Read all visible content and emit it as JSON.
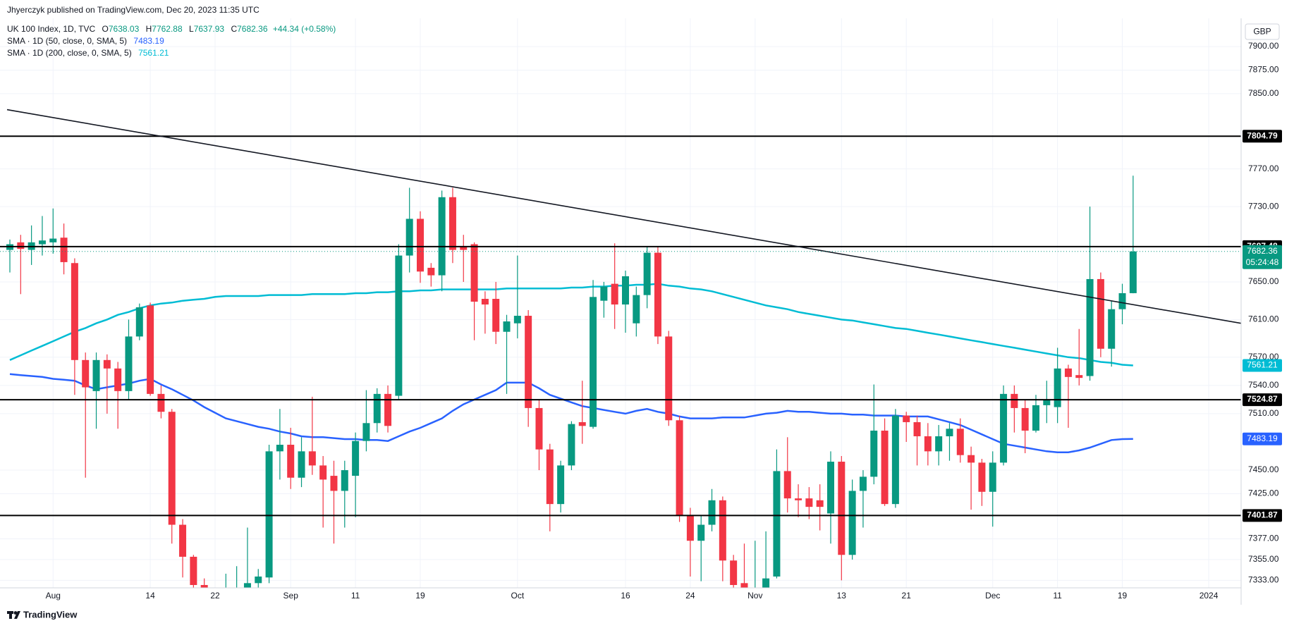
{
  "header": {
    "published": "Jhyerczyk published on TradingView.com, Dec 20, 2023 11:35 UTC"
  },
  "chart_data": {
    "type": "candlestick",
    "title": "UK 100 Index, 1D, TVC",
    "ohlc_keys": [
      "O",
      "H",
      "L",
      "C"
    ],
    "change": "+44.34 (+0.58%)",
    "currency": "GBP",
    "up_color": "#089981",
    "down_color": "#f23645",
    "categories": [
      null,
      null,
      null,
      null,
      "Aug",
      null,
      null,
      null,
      null,
      null,
      null,
      null,
      null,
      "14",
      null,
      null,
      null,
      null,
      null,
      "22",
      null,
      null,
      null,
      null,
      null,
      null,
      "Sep",
      null,
      null,
      null,
      null,
      null,
      "11",
      null,
      null,
      null,
      null,
      null,
      "19",
      null,
      null,
      null,
      null,
      null,
      null,
      null,
      null,
      "Oct",
      null,
      null,
      null,
      null,
      null,
      null,
      null,
      null,
      null,
      "16",
      null,
      null,
      null,
      null,
      null,
      "24",
      null,
      null,
      null,
      null,
      null,
      "Nov",
      null,
      null,
      null,
      null,
      null,
      null,
      null,
      "13",
      null,
      null,
      null,
      null,
      null,
      "21",
      null,
      null,
      null,
      null,
      null,
      null,
      null,
      "Dec",
      null,
      null,
      null,
      null,
      null,
      "11",
      null,
      null,
      null,
      null,
      null,
      "19",
      null,
      null,
      null,
      null,
      null,
      null,
      null,
      "2024",
      null,
      null,
      null
    ],
    "open": [
      7684,
      7692,
      7684,
      7690,
      7692,
      7697,
      7670,
      7567,
      7534,
      7567,
      7558,
      7534,
      7592,
      7625,
      7531,
      7512,
      7392,
      7358,
      7328,
      7300,
      7290,
      7310,
      7320,
      7330,
      7336,
      7470,
      7477,
      7442,
      7470,
      7455,
      7444,
      7428,
      7444,
      7481,
      7500,
      7531,
      7529,
      7678,
      7717,
      7665,
      7657,
      7740,
      7688,
      7690,
      7632,
      7632,
      7597,
      7606,
      7614,
      7516,
      7472,
      7414,
      7455,
      7501,
      7496,
      7630,
      7648,
      7626,
      7606,
      7636,
      7681,
      7592,
      7503,
      7402,
      7375,
      7392,
      7418,
      7354,
      7330,
      7320,
      7325,
      7337,
      7449,
      7420,
      7420,
      7418,
      7404,
      7459,
      7360,
      7428,
      7443,
      7492,
      7414,
      7508,
      7501,
      7486,
      7470,
      7486,
      7494,
      7466,
      7458,
      7427,
      7458,
      7531,
      7516,
      7492,
      7519,
      7517,
      7558,
      7551,
      7550,
      7653,
      7579,
      7621,
      7638.03,
      null,
      null,
      null,
      null,
      null,
      null,
      null,
      null,
      null,
      null
    ],
    "high": [
      7695,
      7700,
      7710,
      7720,
      7728,
      7712,
      7675,
      7575,
      7575,
      7573,
      7565,
      7610,
      7627,
      7628,
      7540,
      7515,
      7398,
      7360,
      7335,
      7320,
      7340,
      7348,
      7389,
      7345,
      7477,
      7515,
      7495,
      7485,
      7528,
      7465,
      7460,
      7460,
      7490,
      7535,
      7537,
      7540,
      7690,
      7750,
      7725,
      7670,
      7747,
      7750,
      7700,
      7692,
      7640,
      7650,
      7615,
      7678,
      7620,
      7525,
      7478,
      7460,
      7502,
      7545,
      7652,
      7650,
      7691,
      7662,
      7645,
      7688,
      7687,
      7598,
      7508,
      7410,
      7402,
      7430,
      7422,
      7360,
      7372,
      7375,
      7385,
      7472,
      7485,
      7435,
      7432,
      7435,
      7470,
      7465,
      7440,
      7450,
      7541,
      7505,
      7515,
      7512,
      7508,
      7500,
      7498,
      7500,
      7505,
      7475,
      7462,
      7470,
      7540,
      7540,
      7525,
      7530,
      7545,
      7580,
      7562,
      7600,
      7730,
      7660,
      7630,
      7648,
      7762.88,
      null,
      null,
      null,
      null,
      null,
      null,
      null,
      null,
      null,
      null
    ],
    "low": [
      7660,
      7637,
      7668,
      7678,
      7680,
      7658,
      7530,
      7442,
      7494,
      7510,
      7494,
      7525,
      7588,
      7529,
      7505,
      7372,
      7336,
      7320,
      7280,
      7260,
      7270,
      7290,
      7300,
      7315,
      7330,
      7440,
      7430,
      7432,
      7445,
      7389,
      7372,
      7389,
      7400,
      7470,
      7490,
      7490,
      7525,
      7660,
      7649,
      7645,
      7640,
      7670,
      7650,
      7588,
      7595,
      7584,
      7531,
      7590,
      7496,
      7450,
      7385,
      7405,
      7450,
      7478,
      7494,
      7612,
      7600,
      7596,
      7592,
      7622,
      7584,
      7497,
      7395,
      7337,
      7332,
      7385,
      7332,
      7310,
      7310,
      7300,
      7310,
      7335,
      7405,
      7400,
      7398,
      7386,
      7372,
      7333,
      7355,
      7389,
      7435,
      7412,
      7410,
      7480,
      7455,
      7455,
      7455,
      7460,
      7458,
      7408,
      7412,
      7390,
      7455,
      7490,
      7468,
      7490,
      7500,
      7500,
      7495,
      7540,
      7545,
      7570,
      7560,
      7605,
      7637.93,
      null,
      null,
      null,
      null,
      null,
      null,
      null,
      null,
      null,
      null
    ],
    "close": [
      7690,
      7685,
      7692,
      7694,
      7696,
      7671,
      7567,
      7538,
      7567,
      7558,
      7534,
      7592,
      7623,
      7531,
      7512,
      7392,
      7358,
      7328,
      7300,
      7290,
      7310,
      7320,
      7330,
      7337,
      7470,
      7477,
      7442,
      7470,
      7455,
      7440,
      7428,
      7450,
      7481,
      7500,
      7531,
      7497,
      7678,
      7717,
      7661,
      7657,
      7740,
      7684,
      7684,
      7629,
      7626,
      7597,
      7608,
      7614,
      7516,
      7472,
      7414,
      7455,
      7499,
      7497,
      7634,
      7645,
      7626,
      7656,
      7636,
      7681,
      7592,
      7503,
      7402,
      7375,
      7392,
      7418,
      7354,
      7328,
      7320,
      7325,
      7335,
      7449,
      7420,
      7418,
      7411,
      7411,
      7459,
      7360,
      7428,
      7443,
      7492,
      7414,
      7508,
      7501,
      7486,
      7470,
      7486,
      7494,
      7466,
      7458,
      7427,
      7458,
      7531,
      7516,
      7492,
      7519,
      7525,
      7558,
      7549,
      7548,
      7653,
      7579,
      7621,
      7638.02,
      7682.36,
      null,
      null,
      null,
      null,
      null,
      null,
      null,
      null,
      null,
      null
    ],
    "series": [
      {
        "name": "SMA · 1D (50, close, 0, SMA, 5)",
        "color": "#2962ff",
        "values": [
          7552,
          7551,
          7550,
          7549,
          7547,
          7546,
          7545,
          7540,
          7536,
          7538,
          7540,
          7542,
          7545,
          7547,
          7541,
          7536,
          7530,
          7524,
          7517,
          7511,
          7505,
          7502,
          7499,
          7496,
          7494,
          7491,
          7489,
          7486,
          7485,
          7485,
          7484,
          7483,
          7483,
          7482,
          7482,
          7481,
          7486,
          7491,
          7495,
          7500,
          7505,
          7513,
          7520,
          7525,
          7530,
          7535,
          7543,
          7543,
          7543,
          7537,
          7530,
          7526,
          7522,
          7518,
          7516,
          7514,
          7512,
          7510,
          7513,
          7515,
          7512,
          7510,
          7507,
          7505,
          7505,
          7505,
          7506,
          7506,
          7506,
          7508,
          7510,
          7511,
          7513,
          7512,
          7512,
          7511,
          7510,
          7510,
          7509,
          7509,
          7508,
          7508,
          7508,
          7507,
          7507,
          7507,
          7504,
          7501,
          7498,
          7493,
          7488,
          7483,
          7478,
          7476,
          7474,
          7472,
          7470,
          7469,
          7469,
          7471,
          7474,
          7478,
          7482,
          7483,
          7483.19,
          null,
          null,
          null,
          null,
          null,
          null,
          null,
          null,
          null,
          null
        ]
      },
      {
        "name": "SMA · 1D (200, close, 0, SMA, 5)",
        "color": "#00bcd4",
        "values": [
          7567,
          7572,
          7577,
          7582,
          7587,
          7592,
          7597,
          7601,
          7606,
          7610,
          7615,
          7618,
          7622,
          7625,
          7627,
          7628,
          7630,
          7631,
          7632,
          7634,
          7635,
          7635,
          7635,
          7635,
          7636,
          7636,
          7636,
          7636,
          7637,
          7637,
          7637,
          7637,
          7638,
          7638,
          7639,
          7639,
          7640,
          7640,
          7641,
          7641,
          7642,
          7642,
          7642,
          7642,
          7642,
          7642,
          7643,
          7643,
          7643,
          7643,
          7643,
          7643,
          7644,
          7644,
          7645,
          7645,
          7646,
          7646,
          7647,
          7647,
          7648,
          7646,
          7645,
          7643,
          7642,
          7640,
          7637,
          7634,
          7631,
          7628,
          7625,
          7623,
          7621,
          7618,
          7616,
          7614,
          7612,
          7610,
          7609,
          7607,
          7605,
          7603,
          7601,
          7600,
          7598,
          7596,
          7594,
          7592,
          7590,
          7588,
          7586,
          7584,
          7582,
          7580,
          7578,
          7576,
          7574,
          7572,
          7570,
          7569,
          7567,
          7565,
          7564,
          7562,
          7561.21,
          null,
          null,
          null,
          null,
          null,
          null,
          null,
          null,
          null,
          null
        ]
      }
    ],
    "ylim": [
      7325,
      7930
    ],
    "yticks": [
      {
        "value": 7333,
        "label": "7333.00"
      },
      {
        "value": 7355,
        "label": "7355.00"
      },
      {
        "value": 7377,
        "label": "7377.00"
      },
      {
        "value": 7425,
        "label": "7425.00"
      },
      {
        "value": 7450,
        "label": "7450.00"
      },
      {
        "value": 7510,
        "label": "7510.00"
      },
      {
        "value": 7540,
        "label": "7540.00"
      },
      {
        "value": 7570,
        "label": "7570.00"
      },
      {
        "value": 7610,
        "label": "7610.00"
      },
      {
        "value": 7650,
        "label": "7650.00"
      },
      {
        "value": 7730,
        "label": "7730.00"
      },
      {
        "value": 7770,
        "label": "7770.00"
      },
      {
        "value": 7850,
        "label": "7850.00"
      },
      {
        "value": 7875,
        "label": "7875.00"
      },
      {
        "value": 7900,
        "label": "7900.00"
      }
    ],
    "grid": true,
    "levels": [
      7804.79,
      7687.48,
      7524.87,
      7401.87
    ],
    "level_color": "#000000",
    "trendline": [
      7833,
      7606
    ],
    "countdown": "05:24:48"
  },
  "footer": {
    "brand": "TradingView"
  }
}
